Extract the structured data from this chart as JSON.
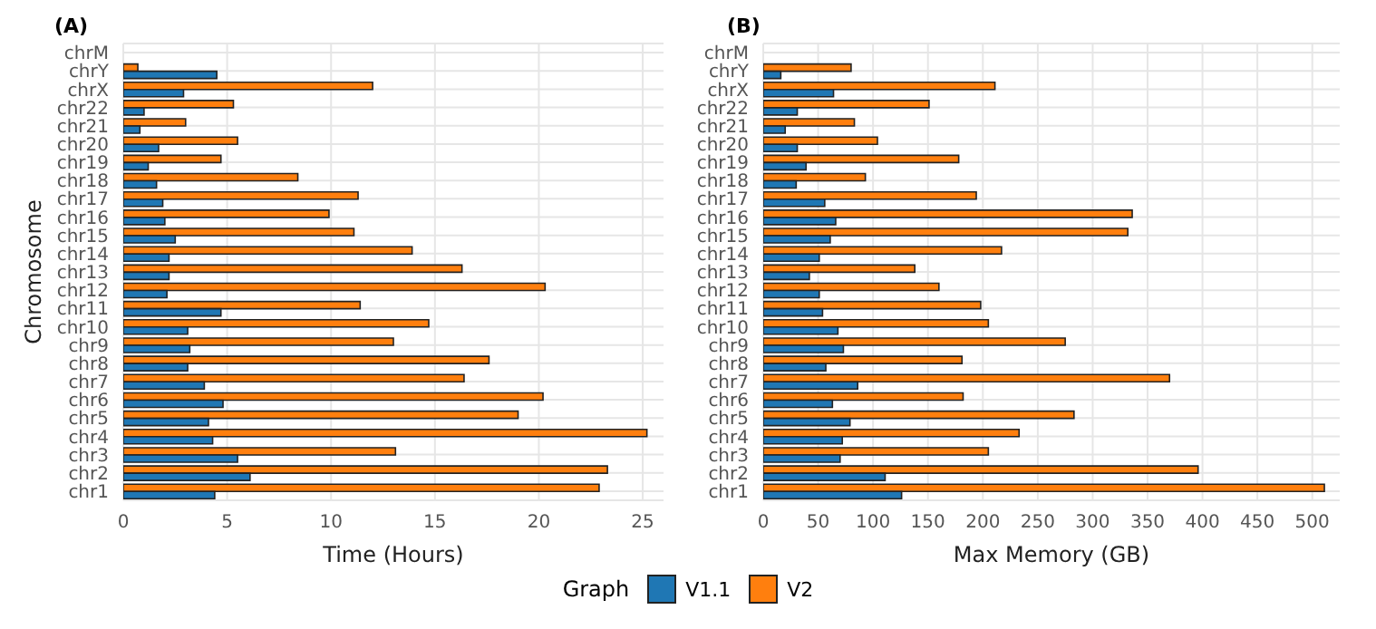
{
  "chart_data": [
    {
      "type": "bar",
      "orientation": "horizontal",
      "title": "(A)",
      "xlabel": "Time (Hours)",
      "ylabel": "Chromosome",
      "legend": "bottom",
      "legend_title": "Graph",
      "categories": [
        "chrM",
        "chrY",
        "chrX",
        "chr22",
        "chr21",
        "chr20",
        "chr19",
        "chr18",
        "chr17",
        "chr16",
        "chr15",
        "chr14",
        "chr13",
        "chr12",
        "chr11",
        "chr10",
        "chr9",
        "chr8",
        "chr7",
        "chr6",
        "chr5",
        "chr4",
        "chr3",
        "chr2",
        "chr1"
      ],
      "series": [
        {
          "name": "V1.1",
          "color": "#1f77b4",
          "values": [
            0,
            4.5,
            2.9,
            1,
            0.8,
            1.7,
            1.2,
            1.6,
            1.9,
            2,
            2.5,
            2.2,
            2.2,
            2.1,
            4.7,
            3.1,
            3.2,
            3.1,
            3.9,
            4.8,
            4.1,
            4.3,
            5.5,
            6.1,
            4.4
          ]
        },
        {
          "name": "V2",
          "color": "#ff7f0e",
          "values": [
            0,
            0.7,
            12,
            5.3,
            3,
            5.5,
            4.7,
            8.4,
            11.3,
            9.9,
            11.1,
            13.9,
            16.3,
            20.3,
            11.4,
            14.7,
            13,
            17.6,
            16.4,
            20.2,
            19,
            25.2,
            13.1,
            23.3,
            22.9
          ]
        }
      ],
      "xlim": [
        0,
        26
      ],
      "xticks": [
        0,
        5,
        10,
        15,
        20,
        25
      ],
      "grid": true
    },
    {
      "type": "bar",
      "orientation": "horizontal",
      "title": "(B)",
      "xlabel": "Max Memory (GB)",
      "categories": [
        "chrM",
        "chrY",
        "chrX",
        "chr22",
        "chr21",
        "chr20",
        "chr19",
        "chr18",
        "chr17",
        "chr16",
        "chr15",
        "chr14",
        "chr13",
        "chr12",
        "chr11",
        "chr10",
        "chr9",
        "chr8",
        "chr7",
        "chr6",
        "chr5",
        "chr4",
        "chr3",
        "chr2",
        "chr1"
      ],
      "series": [
        {
          "color": "#1f77b4",
          "values": [
            0,
            16,
            64,
            31,
            20,
            31,
            39,
            30,
            56,
            66,
            61,
            51,
            42,
            51,
            54,
            68,
            73,
            57,
            86,
            63,
            79,
            72,
            70,
            111,
            126
          ]
        },
        {
          "color": "#ff7f0e",
          "values": [
            0,
            80,
            211,
            151,
            83,
            104,
            178,
            93,
            194,
            336,
            332,
            217,
            138,
            160,
            198,
            205,
            275,
            181,
            370,
            182,
            283,
            233,
            205,
            396,
            511
          ]
        }
      ],
      "xlim": [
        0,
        525
      ],
      "xticks": [
        0,
        50,
        100,
        150,
        200,
        250,
        300,
        350,
        400,
        450,
        500
      ],
      "grid": true
    }
  ]
}
